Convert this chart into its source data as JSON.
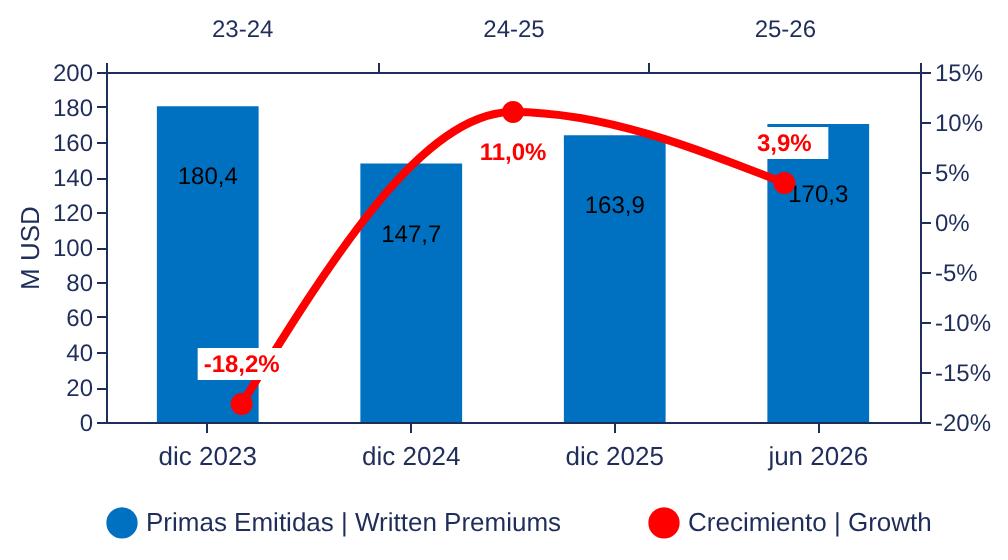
{
  "chart_data": [
    {
      "type": "bar",
      "categories": [
        "dic 2023",
        "dic 2024",
        "dic 2025",
        "jun 2026"
      ],
      "ylabel": "M  USD",
      "ylim": [
        0,
        200
      ],
      "yticks": [
        0,
        20,
        40,
        60,
        80,
        100,
        120,
        140,
        160,
        180,
        200
      ],
      "legend": "bottom",
      "grid": false,
      "series": [
        {
          "name": "Primas Emitidas | Written Premiums",
          "color": "#0070c0",
          "values": [
            180.4,
            147.7,
            163.9,
            170.3
          ],
          "value_labels": [
            "180,4",
            "147,7",
            "163,9",
            "170,3"
          ]
        }
      ]
    },
    {
      "type": "line",
      "categories": [
        "23-24",
        "24-25",
        "25-26"
      ],
      "ylim": [
        -20,
        15
      ],
      "yticks": [
        {
          "value": -20,
          "label": "-20%"
        },
        {
          "value": -15,
          "label": "-15%"
        },
        {
          "value": -10,
          "label": "-10%"
        },
        {
          "value": -5,
          "label": "-5%"
        },
        {
          "value": 0,
          "label": "0%"
        },
        {
          "value": 5,
          "label": "5%"
        },
        {
          "value": 10,
          "label": "10%"
        },
        {
          "value": 15,
          "label": "15%"
        }
      ],
      "legend": "bottom",
      "grid": false,
      "marker": "circle",
      "line_style": "solid",
      "series": [
        {
          "name": "Crecimiento | Growth",
          "color": "#ff0000",
          "values": [
            -18.2,
            11.0,
            3.9
          ],
          "value_labels": [
            "-18,2%",
            "11,0%",
            "3,9%"
          ]
        }
      ]
    }
  ]
}
